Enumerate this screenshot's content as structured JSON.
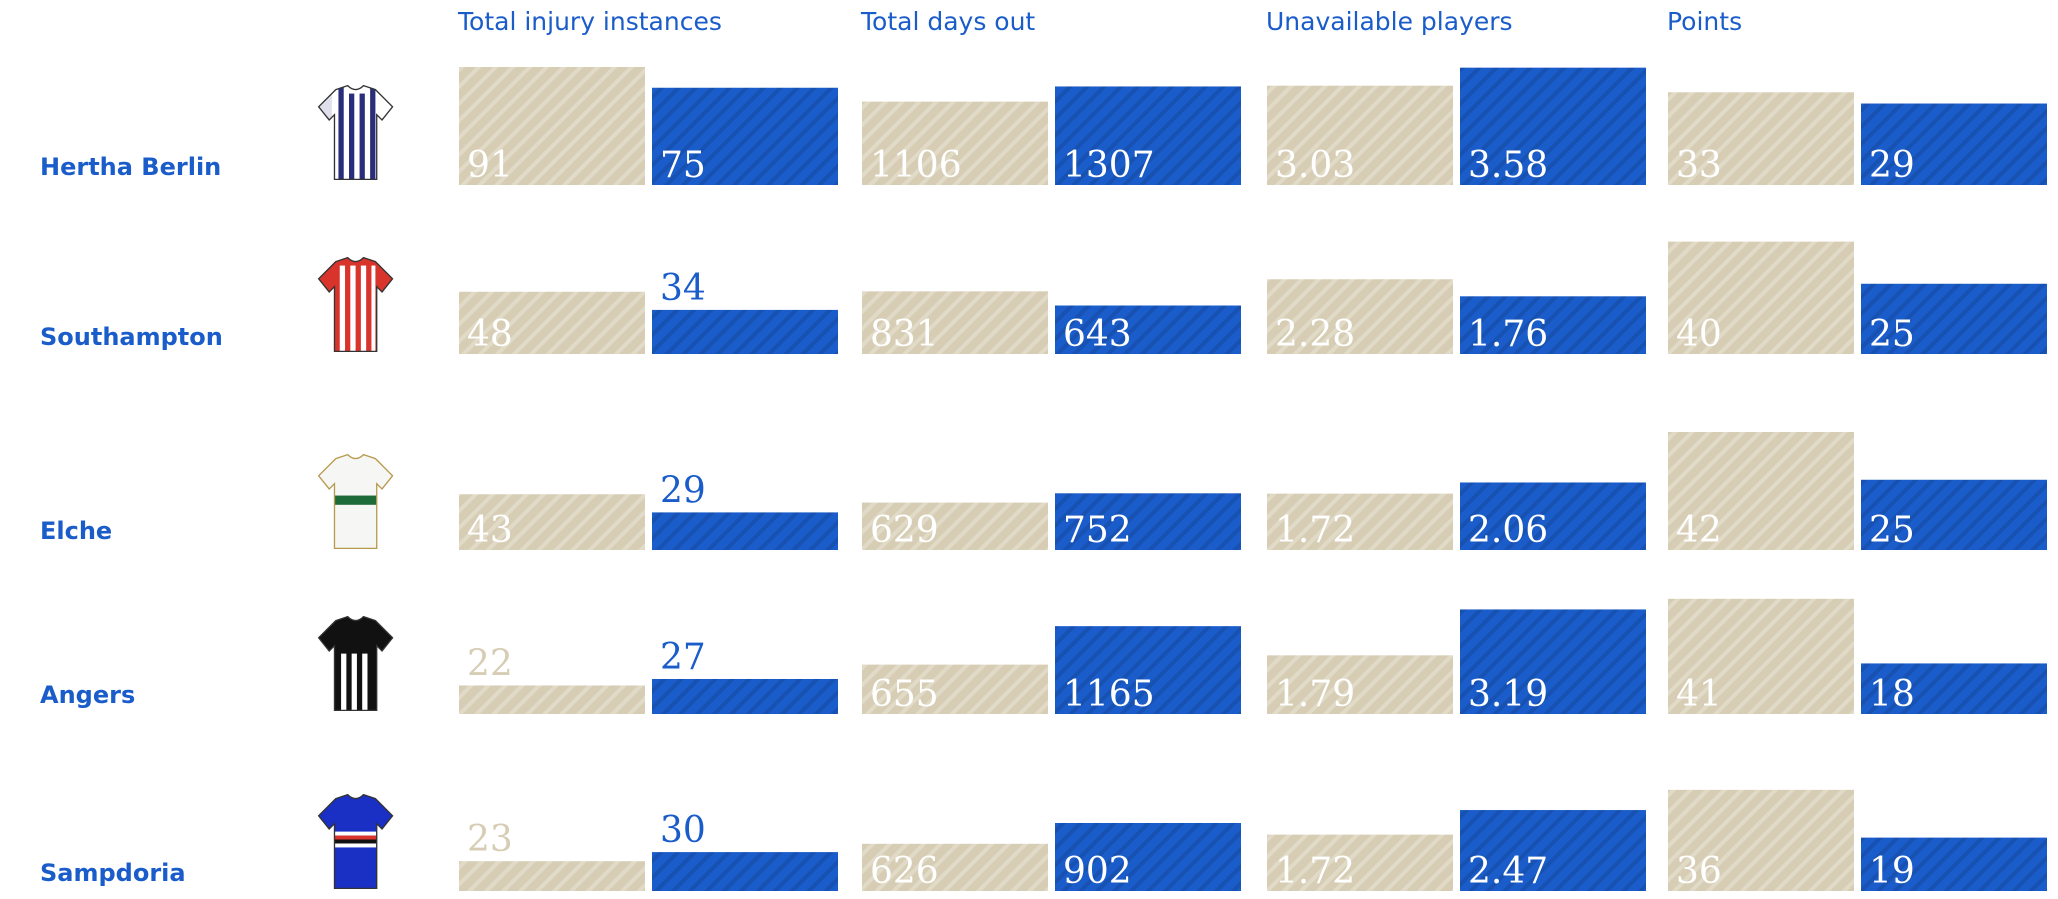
{
  "chart_data": {
    "type": "bar",
    "metrics": [
      {
        "title": "Total injury instances",
        "ylim": [
          0,
          91
        ]
      },
      {
        "title": "Total days out",
        "ylim": [
          0,
          1565
        ]
      },
      {
        "title": "Unavailable players",
        "ylim": [
          0,
          3.6
        ]
      },
      {
        "title": "Points",
        "ylim": [
          0,
          42
        ]
      }
    ],
    "teams": [
      "Hertha Berlin",
      "Southampton",
      "Elche",
      "Angers",
      "Sampdoria"
    ],
    "series": [
      {
        "color": "#d6cdb4",
        "values": [
          [
            91,
            1106,
            3.03,
            33
          ],
          [
            48,
            831,
            2.28,
            40
          ],
          [
            43,
            629,
            1.72,
            42
          ],
          [
            22,
            655,
            1.79,
            41
          ],
          [
            23,
            626,
            1.72,
            36
          ]
        ]
      },
      {
        "color": "#1a5cc9",
        "values": [
          [
            75,
            1307,
            3.58,
            29
          ],
          [
            34,
            643,
            1.76,
            25
          ],
          [
            29,
            752,
            2.06,
            25
          ],
          [
            27,
            1165,
            3.19,
            18
          ],
          [
            30,
            902,
            2.47,
            19
          ]
        ]
      }
    ]
  }
}
